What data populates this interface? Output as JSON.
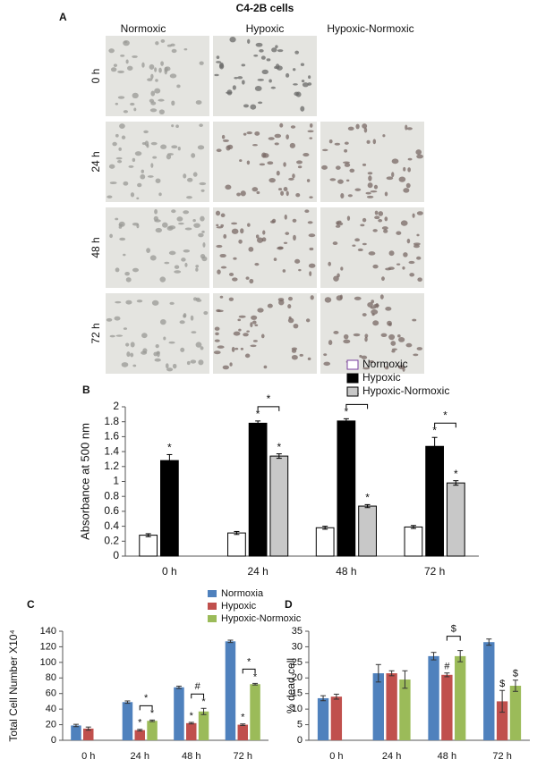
{
  "panel_a": {
    "label": "A",
    "title": "C4-2B cells",
    "columns": [
      "Normoxic",
      "Hypoxic",
      "Hypoxic-Normoxic"
    ],
    "rows": [
      "0 h",
      "24 h",
      "48 h",
      "72 h"
    ]
  },
  "chart_data": [
    {
      "type": "bar",
      "panel_label": "B",
      "y_label": "Absorbance at 500 nm",
      "categories": [
        "0 h",
        "24 h",
        "48 h",
        "72 h"
      ],
      "series": [
        {
          "name": "Normoxic",
          "color": "#ffffff",
          "values": [
            0.28,
            0.31,
            0.38,
            0.39
          ],
          "error": [
            0.02,
            0.02,
            0.02,
            0.02
          ]
        },
        {
          "name": "Hypoxic",
          "color": "#000000",
          "values": [
            1.28,
            1.78,
            1.81,
            1.47
          ],
          "error": [
            0.08,
            0.03,
            0.03,
            0.12
          ],
          "marker_labels": [
            "*",
            "*",
            "*",
            "*"
          ]
        },
        {
          "name": "Hypoxic-Normoxic",
          "color": "#c8c8c8",
          "values": [
            null,
            1.34,
            0.67,
            0.98
          ],
          "error": [
            null,
            0.03,
            0.02,
            0.03
          ],
          "marker_labels": [
            null,
            "*",
            "*",
            "*"
          ]
        }
      ],
      "brackets": [
        null,
        "*",
        "*",
        "*"
      ],
      "bar_outline": "#000000",
      "ylim": [
        0,
        2
      ],
      "yticks": [
        0,
        0.2,
        0.4,
        0.6,
        0.8,
        1,
        1.2,
        1.4,
        1.6,
        1.8,
        2
      ],
      "legend": "top-right"
    },
    {
      "type": "bar",
      "panel_label": "C",
      "y_label": "Total Cell Number X10⁴",
      "categories": [
        "0 h",
        "24 h",
        "48 h",
        "72 h"
      ],
      "series": [
        {
          "name": "Normoxia",
          "color": "#4f81bd",
          "values": [
            19,
            49,
            68,
            127
          ],
          "error": [
            1.5,
            1.5,
            1.5,
            1.5
          ]
        },
        {
          "name": "Hypoxic",
          "color": "#c0504d",
          "values": [
            15,
            13,
            22,
            20
          ],
          "error": [
            2,
            1,
            1,
            1
          ],
          "marker_labels": [
            null,
            "*",
            "*",
            "*"
          ]
        },
        {
          "name": "Hypoxic-Normoxic",
          "color": "#9bbb59",
          "values": [
            null,
            25,
            37,
            72
          ],
          "error": [
            null,
            1,
            4,
            1
          ],
          "marker_labels": [
            null,
            "*",
            "*",
            "*"
          ]
        }
      ],
      "brackets": [
        null,
        "*",
        "#",
        "*"
      ],
      "ylim": [
        0,
        140
      ],
      "yticks": [
        0,
        20,
        40,
        60,
        80,
        100,
        120,
        140
      ],
      "legend": "top-right"
    },
    {
      "type": "bar",
      "panel_label": "D",
      "y_label": "% dead cell",
      "categories": [
        "0 h",
        "24 h",
        "48 h",
        "72 h"
      ],
      "series": [
        {
          "color": "#4f81bd",
          "values": [
            13.5,
            21.5,
            27,
            31.5
          ],
          "error": [
            0.8,
            2.8,
            1.2,
            1
          ]
        },
        {
          "color": "#c0504d",
          "values": [
            14,
            21.5,
            21,
            12.5
          ],
          "error": [
            0.8,
            0.8,
            0.6,
            3.5
          ],
          "marker_labels": [
            null,
            null,
            "#",
            "$"
          ]
        },
        {
          "color": "#9bbb59",
          "values": [
            null,
            19.5,
            27,
            17.5
          ],
          "error": [
            null,
            2.8,
            1.8,
            1.8
          ],
          "marker_labels": [
            null,
            null,
            null,
            "$"
          ]
        }
      ],
      "brackets": [
        null,
        null,
        "$",
        null
      ],
      "ylim": [
        0,
        35
      ],
      "yticks": [
        0,
        5,
        10,
        15,
        20,
        25,
        30,
        35
      ]
    }
  ]
}
